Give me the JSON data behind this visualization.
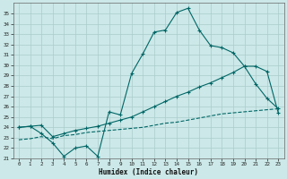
{
  "bg_color": "#cce8e8",
  "grid_color": "#aacccc",
  "line_color": "#006666",
  "xlabel": "Humidex (Indice chaleur)",
  "xlim": [
    -0.5,
    23.5
  ],
  "ylim": [
    21,
    36
  ],
  "yticks": [
    21,
    22,
    23,
    24,
    25,
    26,
    27,
    28,
    29,
    30,
    31,
    32,
    33,
    34,
    35
  ],
  "xticks": [
    0,
    1,
    2,
    3,
    4,
    5,
    6,
    7,
    8,
    9,
    10,
    11,
    12,
    13,
    14,
    15,
    16,
    17,
    18,
    19,
    20,
    21,
    22,
    23
  ],
  "line1_x": [
    0,
    1,
    2,
    3,
    4,
    5,
    6,
    7,
    8,
    9,
    10,
    11,
    12,
    13,
    14,
    15,
    16,
    17,
    18,
    19,
    20,
    21,
    22,
    23
  ],
  "line1_y": [
    24.0,
    24.1,
    23.4,
    22.5,
    21.2,
    22.0,
    22.2,
    21.2,
    25.5,
    25.2,
    29.2,
    31.1,
    33.2,
    33.4,
    35.1,
    35.5,
    33.4,
    31.9,
    31.7,
    31.2,
    29.9,
    28.2,
    26.8,
    25.8
  ],
  "line2_x": [
    0,
    1,
    2,
    3,
    4,
    5,
    6,
    7,
    8,
    9,
    10,
    11,
    12,
    13,
    14,
    15,
    16,
    17,
    18,
    19,
    20,
    21,
    22,
    23
  ],
  "line2_y": [
    24.0,
    24.1,
    24.2,
    23.1,
    23.4,
    23.7,
    23.9,
    24.1,
    24.4,
    24.7,
    25.0,
    25.5,
    26.0,
    26.5,
    27.0,
    27.4,
    27.9,
    28.3,
    28.8,
    29.3,
    29.9,
    29.9,
    29.4,
    25.4
  ],
  "line3_x": [
    0,
    1,
    2,
    3,
    4,
    5,
    6,
    7,
    8,
    9,
    10,
    11,
    12,
    13,
    14,
    15,
    16,
    17,
    18,
    19,
    20,
    21,
    22,
    23
  ],
  "line3_y": [
    22.8,
    22.9,
    23.1,
    22.9,
    23.2,
    23.3,
    23.5,
    23.6,
    23.7,
    23.8,
    23.9,
    24.0,
    24.2,
    24.4,
    24.5,
    24.7,
    24.9,
    25.1,
    25.3,
    25.4,
    25.5,
    25.6,
    25.7,
    25.8
  ]
}
